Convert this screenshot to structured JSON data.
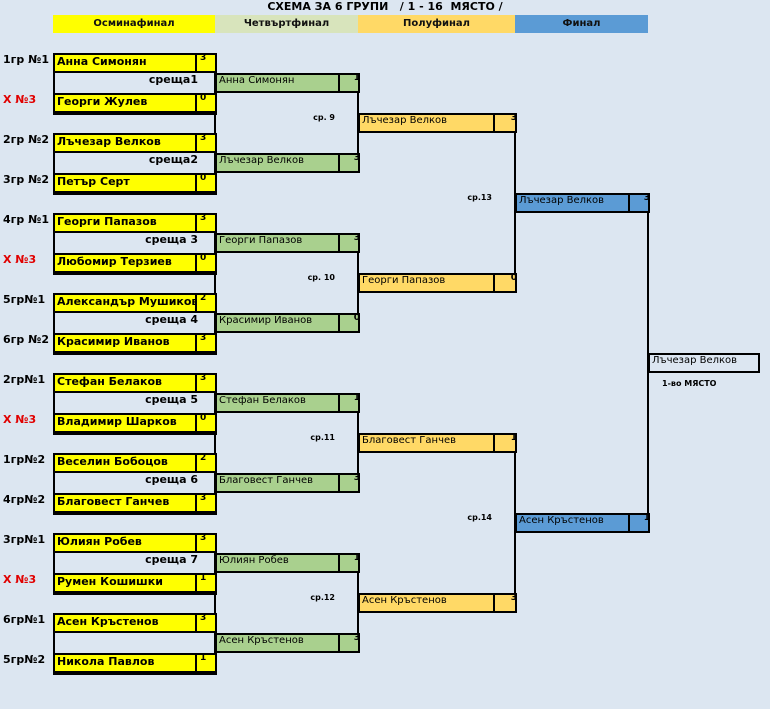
{
  "title": "СХЕМА ЗА 6 ГРУПИ   / 1 - 16  МЯСТО /",
  "rounds": [
    {
      "label": "Осминафинал",
      "color": "#ffff00"
    },
    {
      "label": "Четвъртфинал",
      "color": "#d8e4bc"
    },
    {
      "label": "Полуфинал",
      "color": "#ffd966"
    },
    {
      "label": "Финал",
      "color": "#5b9bd5"
    }
  ],
  "box_colors": {
    "r16": "#ffff00",
    "qf": "#a9d08e",
    "sf": "#ffd966",
    "final": "#5b9bd5",
    "winner": "#dce6f1"
  },
  "round_of_16": [
    {
      "seed": "1гр №1",
      "name": "Анна Симонян",
      "score": "3"
    },
    {
      "seed": "Х №3",
      "name": "Георги Жулев",
      "score": "0",
      "seed_red": true
    },
    {
      "seed": "2гр №2",
      "name": "Лъчезар Велков",
      "score": "3"
    },
    {
      "seed": "3гр №2",
      "name": "Петър Серт",
      "score": "0"
    },
    {
      "seed": "4гр №1",
      "name": "Георги Папазов",
      "score": "3"
    },
    {
      "seed": "Х №3",
      "name": "Любомир Терзиев",
      "score": "0",
      "seed_red": true
    },
    {
      "seed": "5гр№1",
      "name": "Александър Мушиков",
      "score": "2"
    },
    {
      "seed": "6гр №2",
      "name": "Красимир Иванов",
      "score": "3"
    },
    {
      "seed": "2гр№1",
      "name": "Стефан Белаков",
      "score": "3"
    },
    {
      "seed": "Х №3",
      "name": "Владимир Шарков",
      "score": "0",
      "seed_red": true
    },
    {
      "seed": "1гр№2",
      "name": "Веселин Бобоцов",
      "score": "2"
    },
    {
      "seed": "4гр№2",
      "name": "Благовест Ганчев",
      "score": "3"
    },
    {
      "seed": "3гр№1",
      "name": "Юлиян Робев",
      "score": "3"
    },
    {
      "seed": "Х №3",
      "name": "Румен Кошишки",
      "score": "1",
      "seed_red": true
    },
    {
      "seed": "6гр№1",
      "name": "Асен Кръстенов",
      "score": "3"
    },
    {
      "seed": "5гр№2",
      "name": "Никола Павлов",
      "score": "1"
    }
  ],
  "match_labels": [
    "среща1",
    "среща2",
    "среща 3",
    "среща 4",
    "среща 5",
    "среща 6",
    "среща 7",
    ""
  ],
  "quarterfinals": [
    {
      "name": "Анна Симонян",
      "score": "1"
    },
    {
      "name": "Лъчезар Велков",
      "score": "3"
    },
    {
      "name": "Георги Папазов",
      "score": "3"
    },
    {
      "name": "Красимир Иванов",
      "score": "0"
    },
    {
      "name": "Стефан Белаков",
      "score": "1"
    },
    {
      "name": "Благовест Ганчев",
      "score": "3"
    },
    {
      "name": "Юлиян Робев",
      "score": "1"
    },
    {
      "name": "Асен Кръстенов",
      "score": "3"
    }
  ],
  "qf_match_labels": [
    "ср. 9",
    "ср. 10",
    "ср.11",
    "ср.12"
  ],
  "semifinals": [
    {
      "name": "Лъчезар Велков",
      "score": "3"
    },
    {
      "name": "Георги Папазов",
      "score": "0"
    },
    {
      "name": "Благовест Ганчев",
      "score": "1"
    },
    {
      "name": "Асен Кръстенов",
      "score": "3"
    }
  ],
  "sf_match_labels": [
    "ср.13",
    "ср.14"
  ],
  "final": [
    {
      "name": "Лъчезар Велков",
      "score": "3"
    },
    {
      "name": "Асен Кръстенов",
      "score": "1"
    }
  ],
  "winner": {
    "name": "Лъчезар Велков",
    "place": "1-во МЯСТО"
  }
}
